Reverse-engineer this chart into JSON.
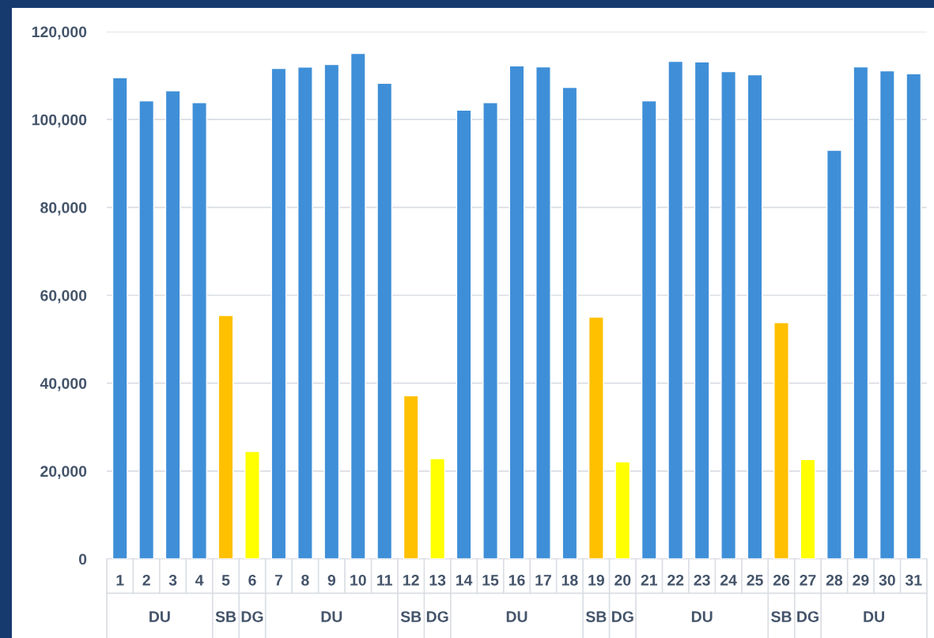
{
  "chart_data": {
    "type": "bar",
    "categories": [
      "1",
      "2",
      "3",
      "4",
      "5",
      "6",
      "7",
      "8",
      "9",
      "10",
      "11",
      "12",
      "13",
      "14",
      "15",
      "16",
      "17",
      "18",
      "19",
      "20",
      "21",
      "22",
      "23",
      "24",
      "25",
      "26",
      "27",
      "28",
      "29",
      "30",
      "31"
    ],
    "values": [
      109500,
      104250,
      106550,
      103850,
      55420,
      24470,
      111630,
      111950,
      112530,
      115050,
      108230,
      37150,
      22850,
      102120,
      103850,
      112200,
      112000,
      107300,
      55050,
      22100,
      104270,
      113250,
      113100,
      110900,
      110200,
      53800,
      22600,
      93000,
      112000,
      111100,
      110400
    ],
    "colors": [
      "#3f8fd8",
      "#3f8fd8",
      "#3f8fd8",
      "#3f8fd8",
      "#ffc000",
      "#ffff00",
      "#3f8fd8",
      "#3f8fd8",
      "#3f8fd8",
      "#3f8fd8",
      "#3f8fd8",
      "#ffc000",
      "#ffff00",
      "#3f8fd8",
      "#3f8fd8",
      "#3f8fd8",
      "#3f8fd8",
      "#3f8fd8",
      "#ffc000",
      "#ffff00",
      "#3f8fd8",
      "#3f8fd8",
      "#3f8fd8",
      "#3f8fd8",
      "#3f8fd8",
      "#ffc000",
      "#ffff00",
      "#3f8fd8",
      "#3f8fd8",
      "#3f8fd8",
      "#3f8fd8"
    ],
    "annotations": [
      "DU",
      "SB",
      "DG",
      "DU",
      "SB",
      "DG",
      "DU",
      "SB",
      "DG",
      "DU",
      "SB",
      "DG",
      "DU"
    ],
    "ylim": [
      0,
      120000
    ],
    "yticks": [
      {
        "value": 0,
        "label": "0"
      },
      {
        "value": 20000,
        "label": "20,000"
      },
      {
        "value": 40000,
        "label": "40,000"
      },
      {
        "value": 60000,
        "label": "60,000"
      },
      {
        "value": 80000,
        "label": "80,000"
      },
      {
        "value": 100000,
        "label": "100,000"
      },
      {
        "value": 120000,
        "label": "120,000"
      }
    ],
    "grid": "y",
    "legend": false
  }
}
